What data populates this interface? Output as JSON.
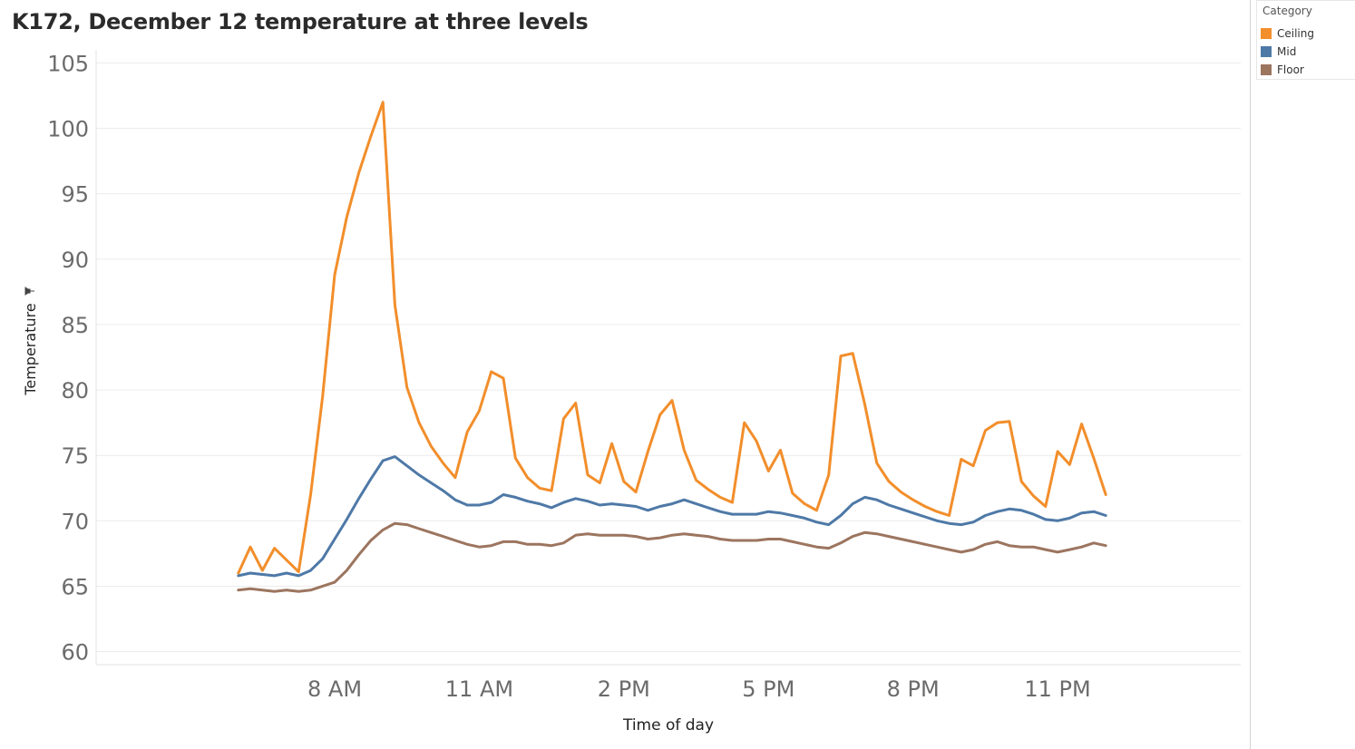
{
  "chart_data": {
    "type": "line",
    "title": "K172, December 12 temperature at three levels",
    "xlabel": "Time of day",
    "ylabel": "Temperature",
    "ylabel_icon": "pin-icon",
    "ylim": [
      59,
      106
    ],
    "yticks": [
      60,
      65,
      70,
      75,
      80,
      85,
      90,
      95,
      100,
      105
    ],
    "xlim": [
      3.05,
      26.8
    ],
    "xticks": [
      {
        "value": 8,
        "label": "8 AM"
      },
      {
        "value": 11,
        "label": "11 AM"
      },
      {
        "value": 14,
        "label": "2 PM"
      },
      {
        "value": 17,
        "label": "5 PM"
      },
      {
        "value": 20,
        "label": "8 PM"
      },
      {
        "value": 23,
        "label": "11 PM"
      }
    ],
    "x_start_hour": 6,
    "x_step_hours": 0.25,
    "grid": "horizontal",
    "legend": {
      "title": "Category",
      "position": "top-right",
      "items": [
        {
          "name": "Ceiling",
          "color": "#f28e2b"
        },
        {
          "name": "Mid",
          "color": "#4e79a7"
        },
        {
          "name": "Floor",
          "color": "#9c755f"
        }
      ]
    },
    "series": [
      {
        "name": "Ceiling",
        "color": "#f28e2b",
        "values": [
          66.0,
          68.0,
          66.2,
          67.9,
          67.0,
          66.1,
          72.0,
          79.5,
          88.8,
          93.2,
          96.6,
          99.4,
          102.0,
          86.5,
          80.2,
          77.5,
          75.7,
          74.4,
          73.3,
          76.8,
          78.4,
          81.4,
          80.9,
          74.8,
          73.3,
          72.5,
          72.3,
          77.8,
          79.0,
          73.5,
          72.9,
          75.9,
          73.0,
          72.2,
          75.3,
          78.1,
          79.2,
          75.4,
          73.1,
          72.4,
          71.8,
          71.4,
          77.5,
          76.1,
          73.8,
          75.4,
          72.1,
          71.3,
          70.8,
          73.5,
          82.6,
          82.8,
          78.9,
          74.4,
          73.0,
          72.2,
          71.6,
          71.1,
          70.7,
          70.4,
          74.7,
          74.2,
          76.9,
          77.5,
          77.6,
          73.0,
          71.9,
          71.1,
          75.3,
          74.3,
          77.4,
          74.8,
          72.0
        ]
      },
      {
        "name": "Mid",
        "color": "#4e79a7",
        "values": [
          65.8,
          66.0,
          65.9,
          65.8,
          66.0,
          65.8,
          66.2,
          67.1,
          68.6,
          70.1,
          71.7,
          73.2,
          74.6,
          74.9,
          74.2,
          73.5,
          72.9,
          72.3,
          71.6,
          71.2,
          71.2,
          71.4,
          72.0,
          71.8,
          71.5,
          71.3,
          71.0,
          71.4,
          71.7,
          71.5,
          71.2,
          71.3,
          71.2,
          71.1,
          70.8,
          71.1,
          71.3,
          71.6,
          71.3,
          71.0,
          70.7,
          70.5,
          70.5,
          70.5,
          70.7,
          70.6,
          70.4,
          70.2,
          69.9,
          69.7,
          70.4,
          71.3,
          71.8,
          71.6,
          71.2,
          70.9,
          70.6,
          70.3,
          70.0,
          69.8,
          69.7,
          69.9,
          70.4,
          70.7,
          70.9,
          70.8,
          70.5,
          70.1,
          70.0,
          70.2,
          70.6,
          70.7,
          70.4
        ]
      },
      {
        "name": "Floor",
        "color": "#9c755f",
        "values": [
          64.7,
          64.8,
          64.7,
          64.6,
          64.7,
          64.6,
          64.7,
          65.0,
          65.3,
          66.2,
          67.4,
          68.5,
          69.3,
          69.8,
          69.7,
          69.4,
          69.1,
          68.8,
          68.5,
          68.2,
          68.0,
          68.1,
          68.4,
          68.4,
          68.2,
          68.2,
          68.1,
          68.3,
          68.9,
          69.0,
          68.9,
          68.9,
          68.9,
          68.8,
          68.6,
          68.7,
          68.9,
          69.0,
          68.9,
          68.8,
          68.6,
          68.5,
          68.5,
          68.5,
          68.6,
          68.6,
          68.4,
          68.2,
          68.0,
          67.9,
          68.3,
          68.8,
          69.1,
          69.0,
          68.8,
          68.6,
          68.4,
          68.2,
          68.0,
          67.8,
          67.6,
          67.8,
          68.2,
          68.4,
          68.1,
          68.0,
          68.0,
          67.8,
          67.6,
          67.8,
          68.0,
          68.3,
          68.1
        ]
      }
    ]
  }
}
